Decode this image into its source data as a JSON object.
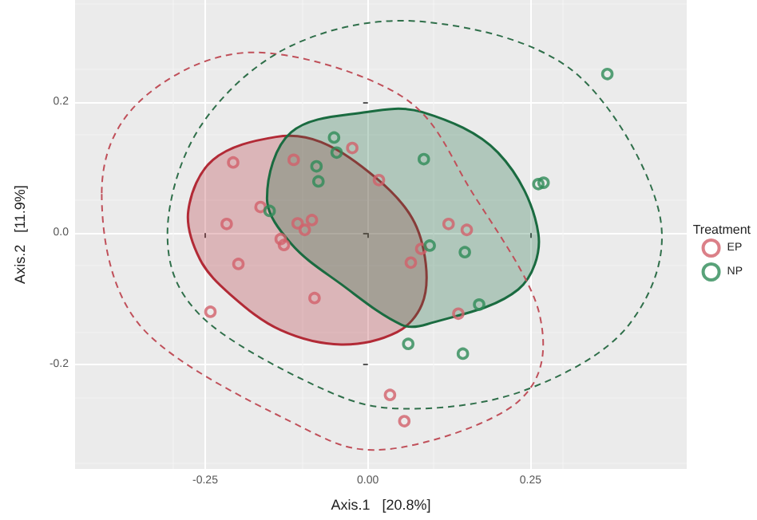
{
  "chart_data": {
    "type": "scatter",
    "xlabel": "Axis.1   [20.8%]",
    "ylabel": "Axis.2   [11.9%]",
    "legend_title": "Treatment",
    "legend": "right",
    "grid": true,
    "xlim": [
      -0.45,
      0.49
    ],
    "ylim": [
      -0.36,
      0.356
    ],
    "xticks": [
      {
        "value": -0.25,
        "label": "-0.25"
      },
      {
        "value": 0,
        "label": "0.00"
      },
      {
        "value": 0.25,
        "label": "0.25"
      }
    ],
    "yticks": [
      {
        "value": -0.2,
        "label": "-0.2"
      },
      {
        "value": 0,
        "label": "0.0"
      },
      {
        "value": 0.2,
        "label": "0.2"
      }
    ],
    "series": [
      {
        "type": "area",
        "marker": "none",
        "color": "#b22a36",
        "x": [
          -0.276,
          -0.238,
          -0.141,
          -0.072,
          0.013,
          0.068,
          0.089,
          0.083,
          0.045,
          -0.041,
          -0.134,
          -0.211,
          -0.258
        ],
        "values": [
          0.034,
          0.112,
          0.147,
          0.139,
          0.084,
          0.023,
          -0.047,
          -0.109,
          -0.151,
          -0.17,
          -0.148,
          -0.094,
          -0.04
        ]
      },
      {
        "type": "area",
        "marker": "none",
        "color": "#1a6b40",
        "x": [
          -0.155,
          -0.118,
          -0.002,
          0.083,
          0.2,
          0.262,
          0.231,
          0.091,
          0.052,
          -0.041,
          -0.118
        ],
        "values": [
          0.053,
          0.154,
          0.185,
          0.185,
          0.123,
          -0.001,
          -0.086,
          -0.139,
          -0.14,
          -0.078,
          -0.016
        ]
      },
      {
        "marker": "circle",
        "name": "EP",
        "color": "#d2606a",
        "x": [
          -0.207,
          -0.165,
          -0.217,
          -0.199,
          -0.082,
          -0.242,
          0.034,
          0.056,
          -0.114,
          -0.024,
          -0.108,
          -0.097,
          -0.086,
          -0.134,
          -0.129,
          0.124,
          0.152,
          0.139,
          0.082,
          0.066,
          0.017
        ],
        "values": [
          0.108,
          0.04,
          0.014,
          -0.047,
          -0.099,
          -0.12,
          -0.247,
          -0.287,
          0.112,
          0.13,
          0.015,
          0.005,
          0.02,
          -0.009,
          -0.018,
          0.014,
          0.005,
          -0.123,
          -0.024,
          -0.045,
          0.081
        ]
      },
      {
        "marker": "circle",
        "name": "NP",
        "color": "#2e8b57",
        "x": [
          -0.052,
          -0.048,
          -0.079,
          -0.076,
          -0.151,
          0.086,
          0.262,
          0.27,
          0.368,
          0.095,
          0.149,
          0.171,
          0.062,
          0.146
        ],
        "values": [
          0.146,
          0.123,
          0.102,
          0.079,
          0.034,
          0.113,
          0.075,
          0.077,
          0.243,
          -0.019,
          -0.029,
          -0.109,
          -0.169,
          -0.184
        ]
      }
    ]
  }
}
